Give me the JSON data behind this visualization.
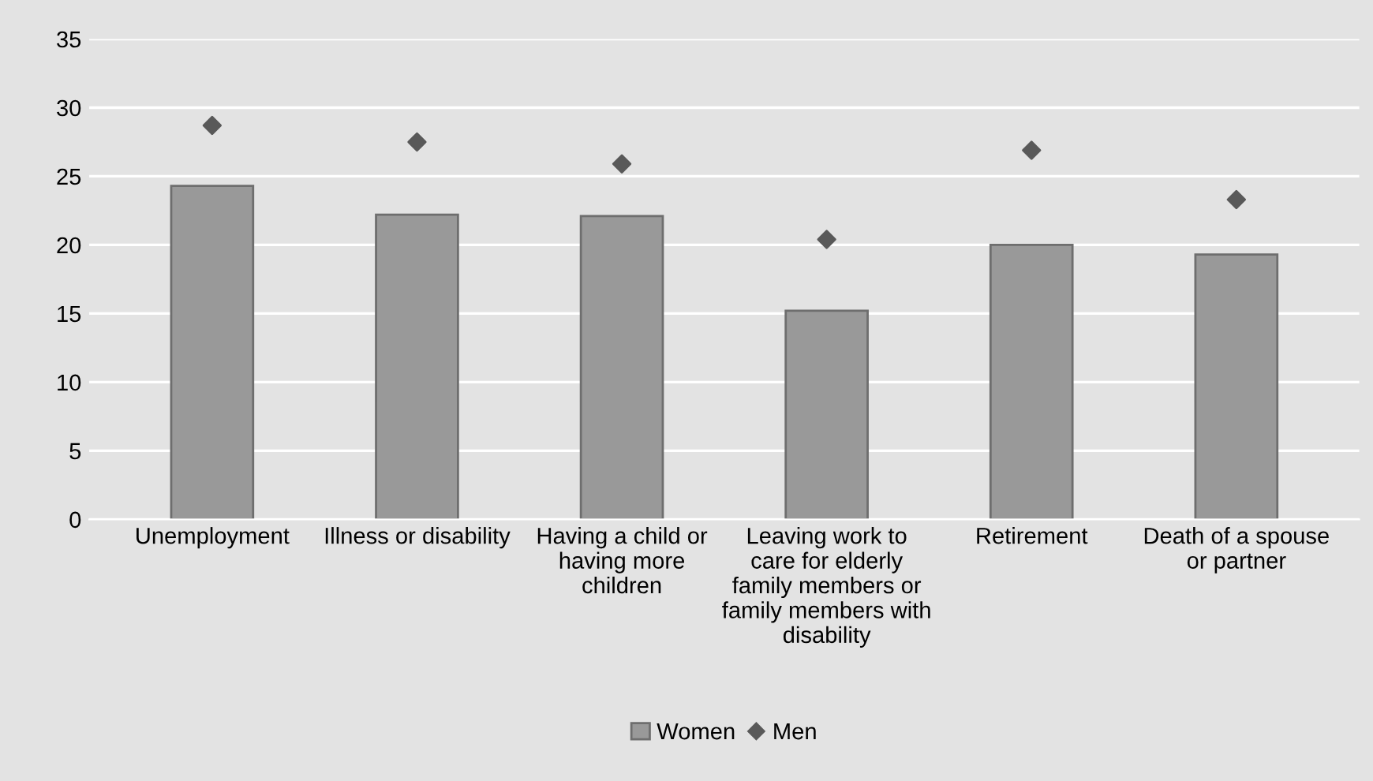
{
  "chart_data": {
    "type": "bar",
    "categories": [
      "Unemployment",
      "Illness or disability",
      "Having a child or having more children",
      "Leaving work to care for elderly family members or family members with disability",
      "Retirement",
      "Death of a spouse or partner"
    ],
    "series": [
      {
        "name": "Women",
        "color": "#999999",
        "values": [
          24.3,
          22.2,
          22.1,
          15.2,
          20.0,
          19.3
        ]
      },
      {
        "name": "Men",
        "type": "scatter",
        "color": "#595959",
        "marker": "diamond",
        "values": [
          28.7,
          27.5,
          25.9,
          20.4,
          26.9,
          23.3
        ]
      }
    ],
    "ylim": [
      0,
      35
    ],
    "yticks": [
      0,
      5,
      10,
      15,
      20,
      25,
      30,
      35
    ],
    "grid": "y",
    "legend": "bottom"
  }
}
